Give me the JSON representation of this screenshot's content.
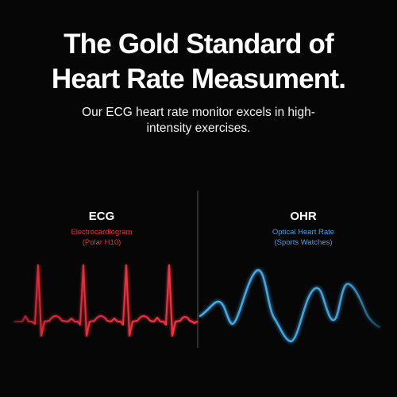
{
  "headline": {
    "line1": "The Gold Standard of",
    "line2": "Heart Rate Measument."
  },
  "subheadline": {
    "line1": "Our ECG heart rate monitor excels in high-",
    "line2": "intensity exercises."
  },
  "ecg": {
    "name": "ECG",
    "desc_line1": "Electrocardiogram",
    "desc_line2": "(Polar H10)",
    "color": "#e8283a"
  },
  "ohr": {
    "name": "OHR",
    "desc_line1": "Optical Heart Rate",
    "desc_line2": "(Sports Watches)",
    "color": "#3fb0f0"
  },
  "divider_color": "#555555",
  "background": "#060606"
}
